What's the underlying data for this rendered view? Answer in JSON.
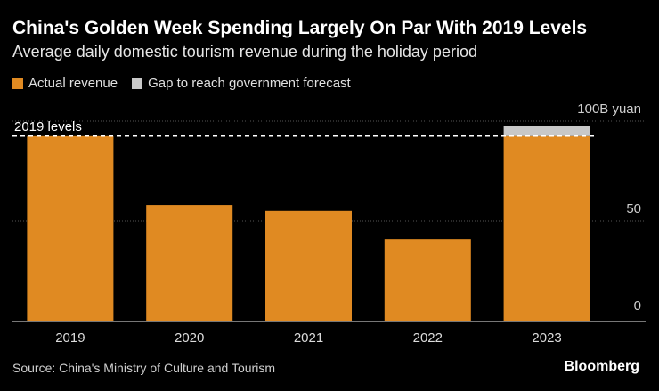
{
  "title": "China's Golden Week Spending Largely On Par With 2019 Levels",
  "subtitle": "Average daily domestic tourism revenue during the holiday period",
  "colors": {
    "actual": "#e08a22",
    "gap": "#c8c8c8",
    "background": "#000000",
    "grid": "#555555",
    "reference": "#ffffff"
  },
  "legend": [
    {
      "label": "Actual revenue",
      "color": "#e08a22"
    },
    {
      "label": "Gap to reach government forecast",
      "color": "#c8c8c8"
    }
  ],
  "chart_data": {
    "type": "bar",
    "stacked": true,
    "categories": [
      "2019",
      "2020",
      "2021",
      "2022",
      "2023"
    ],
    "series": [
      {
        "name": "Actual revenue",
        "values": [
          92.5,
          58,
          55,
          41,
          92.5
        ]
      },
      {
        "name": "Gap to reach government forecast",
        "values": [
          0,
          0,
          0,
          0,
          5
        ]
      }
    ],
    "reference_line": {
      "label": "2019 levels",
      "value": 92.5
    },
    "y_axis": {
      "ticks": [
        {
          "value": 0,
          "label": "0"
        },
        {
          "value": 50,
          "label": "50"
        },
        {
          "value": 100,
          "label": "100B yuan"
        }
      ],
      "range": [
        0,
        100
      ],
      "position": "right"
    },
    "grid": true
  },
  "source": "Source: China's Ministry of Culture and Tourism",
  "brand": "Bloomberg"
}
